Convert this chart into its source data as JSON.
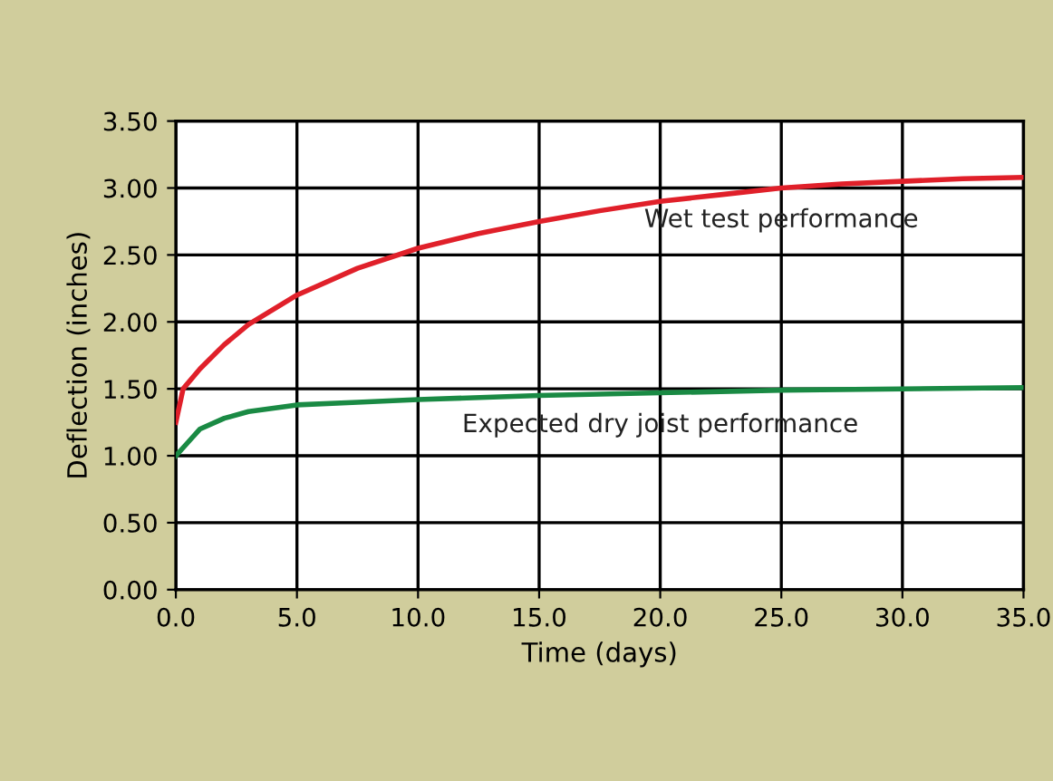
{
  "chart_data": {
    "type": "line",
    "xlabel": "Time (days)",
    "ylabel": "Deflection (inches)",
    "xlim": [
      0,
      35
    ],
    "ylim": [
      0,
      3.5
    ],
    "xticks": [
      {
        "value": 0,
        "label": "0.0"
      },
      {
        "value": 5,
        "label": "5.0"
      },
      {
        "value": 10,
        "label": "10.0"
      },
      {
        "value": 15,
        "label": "15.0"
      },
      {
        "value": 20,
        "label": "20.0"
      },
      {
        "value": 25,
        "label": "25.0"
      },
      {
        "value": 30,
        "label": "30.0"
      },
      {
        "value": 35,
        "label": "35.0"
      }
    ],
    "yticks": [
      {
        "value": 0,
        "label": "0.00"
      },
      {
        "value": 0.5,
        "label": "0.50"
      },
      {
        "value": 1,
        "label": "1.00"
      },
      {
        "value": 1.5,
        "label": "1.50"
      },
      {
        "value": 2,
        "label": "2.00"
      },
      {
        "value": 2.5,
        "label": "2.50"
      },
      {
        "value": 3,
        "label": "3.00"
      },
      {
        "value": 3.5,
        "label": "3.50"
      }
    ],
    "grid": true,
    "marker": "none",
    "line_style": "solid",
    "series": [
      {
        "name": "Wet test performance",
        "color": "#e0202a",
        "x": [
          0,
          0.3,
          1,
          2,
          3,
          5,
          7.5,
          10,
          12.5,
          15,
          17.5,
          20,
          22.5,
          25,
          27.5,
          30,
          32.5,
          35
        ],
        "values": [
          1.25,
          1.5,
          1.65,
          1.83,
          1.98,
          2.2,
          2.4,
          2.55,
          2.66,
          2.75,
          2.83,
          2.9,
          2.95,
          3.0,
          3.03,
          3.05,
          3.07,
          3.08
        ]
      },
      {
        "name": "Expected dry joist performance",
        "color": "#1a8a44",
        "x": [
          0,
          0.5,
          1,
          2,
          3,
          5,
          7.5,
          10,
          15,
          20,
          25,
          30,
          35
        ],
        "values": [
          1.0,
          1.1,
          1.2,
          1.28,
          1.33,
          1.38,
          1.4,
          1.42,
          1.45,
          1.47,
          1.49,
          1.5,
          1.51
        ]
      }
    ]
  }
}
